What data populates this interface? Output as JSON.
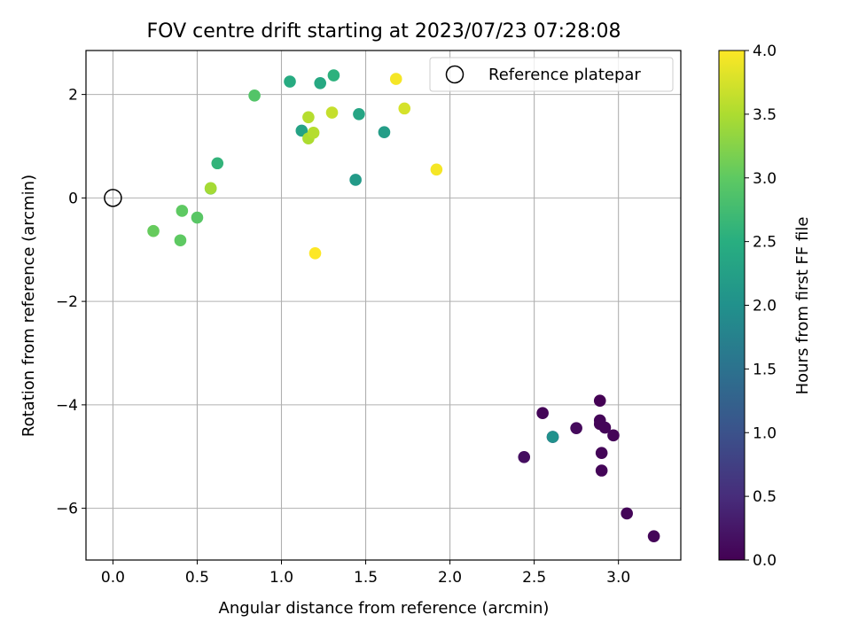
{
  "chart_data": {
    "type": "scatter",
    "title": "FOV centre drift starting at 2023/07/23 07:28:08",
    "xlabel": "Angular distance from reference (arcmin)",
    "ylabel": "Rotation from reference (arcmin)",
    "xlim": [
      -0.16,
      3.37
    ],
    "ylim": [
      -7.0,
      2.85
    ],
    "xticks": [
      "0.0",
      "0.5",
      "1.0",
      "1.5",
      "2.0",
      "2.5",
      "3.0"
    ],
    "xtick_values": [
      0,
      0.5,
      1.0,
      1.5,
      2.0,
      2.5,
      3.0
    ],
    "yticks": [
      "2",
      "0",
      "−2",
      "−4",
      "−6"
    ],
    "ytick_values": [
      2,
      0,
      -2,
      -4,
      -6
    ],
    "grid": true,
    "legend": {
      "placement": "top-right",
      "entries": [
        "Reference platepar"
      ]
    },
    "reference_point": {
      "x": 0.0,
      "y": 0.0
    },
    "colorbar": {
      "label": "Hours from first FF file",
      "colormap": "viridis",
      "range": [
        0.0,
        4.0
      ],
      "ticks": [
        "0.0",
        "0.5",
        "1.0",
        "1.5",
        "2.0",
        "2.5",
        "3.0",
        "3.5",
        "4.0"
      ],
      "tick_values": [
        0.0,
        0.5,
        1.0,
        1.5,
        2.0,
        2.5,
        3.0,
        3.5,
        4.0
      ]
    },
    "points": [
      {
        "x": 2.89,
        "y": -3.92,
        "c": 0.0
      },
      {
        "x": 2.55,
        "y": -4.16,
        "c": 0.05
      },
      {
        "x": 2.89,
        "y": -4.3,
        "c": 0.05
      },
      {
        "x": 2.89,
        "y": -4.37,
        "c": 0.05
      },
      {
        "x": 2.92,
        "y": -4.44,
        "c": 0.05
      },
      {
        "x": 2.75,
        "y": -4.45,
        "c": 0.1
      },
      {
        "x": 2.97,
        "y": -4.59,
        "c": 0.05
      },
      {
        "x": 2.9,
        "y": -4.93,
        "c": 0.05
      },
      {
        "x": 2.44,
        "y": -5.01,
        "c": 0.15
      },
      {
        "x": 2.9,
        "y": -5.27,
        "c": 0.05
      },
      {
        "x": 3.05,
        "y": -6.1,
        "c": 0.05
      },
      {
        "x": 3.21,
        "y": -6.54,
        "c": 0.05
      },
      {
        "x": 2.61,
        "y": -4.62,
        "c": 0.1
      },
      {
        "x": 2.61,
        "y": -4.62,
        "c": 2.0
      },
      {
        "x": 1.44,
        "y": 0.35,
        "c": 2.15
      },
      {
        "x": 1.61,
        "y": 1.27,
        "c": 2.2
      },
      {
        "x": 1.12,
        "y": 1.3,
        "c": 2.3
      },
      {
        "x": 1.46,
        "y": 1.62,
        "c": 2.35
      },
      {
        "x": 1.23,
        "y": 2.22,
        "c": 2.4
      },
      {
        "x": 1.05,
        "y": 2.25,
        "c": 2.45
      },
      {
        "x": 1.31,
        "y": 2.37,
        "c": 2.55
      },
      {
        "x": 0.62,
        "y": 0.67,
        "c": 2.6
      },
      {
        "x": 0.84,
        "y": 1.98,
        "c": 2.9
      },
      {
        "x": 0.5,
        "y": -0.38,
        "c": 2.95
      },
      {
        "x": 0.41,
        "y": -0.25,
        "c": 3.0
      },
      {
        "x": 0.4,
        "y": -0.82,
        "c": 3.0
      },
      {
        "x": 0.24,
        "y": -0.64,
        "c": 3.05
      },
      {
        "x": 0.58,
        "y": 0.18,
        "c": 3.1
      },
      {
        "x": 0.58,
        "y": 0.19,
        "c": 3.45
      },
      {
        "x": 1.16,
        "y": 1.15,
        "c": 3.5
      },
      {
        "x": 1.16,
        "y": 1.56,
        "c": 3.55
      },
      {
        "x": 1.19,
        "y": 1.26,
        "c": 3.55
      },
      {
        "x": 1.3,
        "y": 1.65,
        "c": 3.65
      },
      {
        "x": 1.73,
        "y": 1.73,
        "c": 3.75
      },
      {
        "x": 1.68,
        "y": 2.3,
        "c": 3.95
      },
      {
        "x": 1.92,
        "y": 0.55,
        "c": 3.95
      },
      {
        "x": 1.2,
        "y": -1.07,
        "c": 4.0
      }
    ]
  }
}
